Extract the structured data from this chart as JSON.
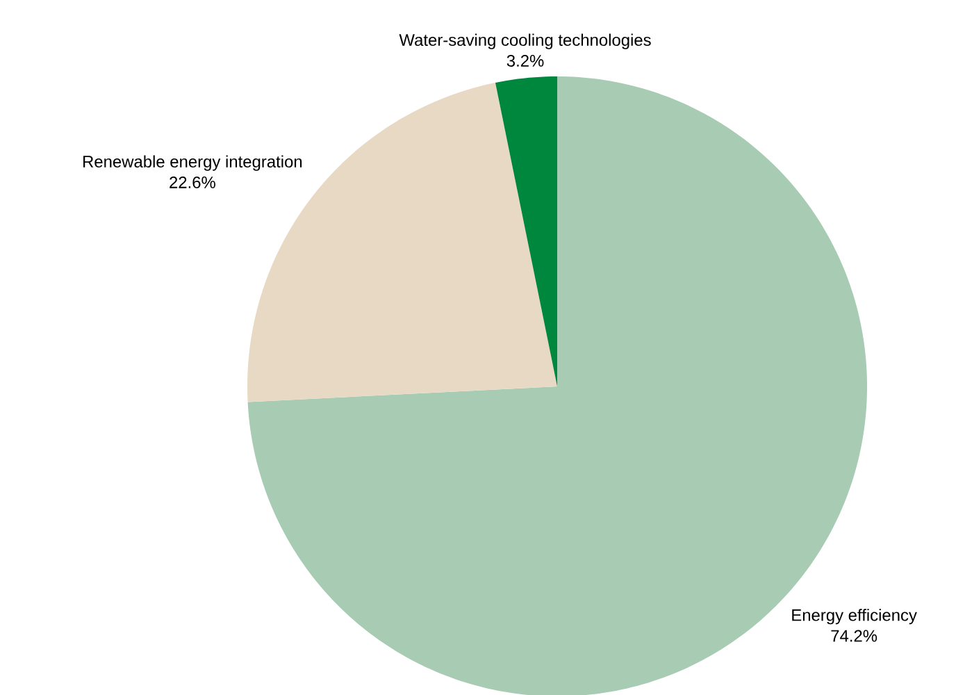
{
  "chart_data": {
    "type": "pie",
    "categories": [
      "Energy efficiency",
      "Renewable energy integration",
      "Water-saving cooling technologies"
    ],
    "values": [
      74.2,
      22.6,
      3.2
    ],
    "value_labels": [
      "74.2%",
      "22.6%",
      "3.2%"
    ],
    "colors": [
      "#a8cbb4",
      "#e8d9c4",
      "#00873e"
    ]
  }
}
